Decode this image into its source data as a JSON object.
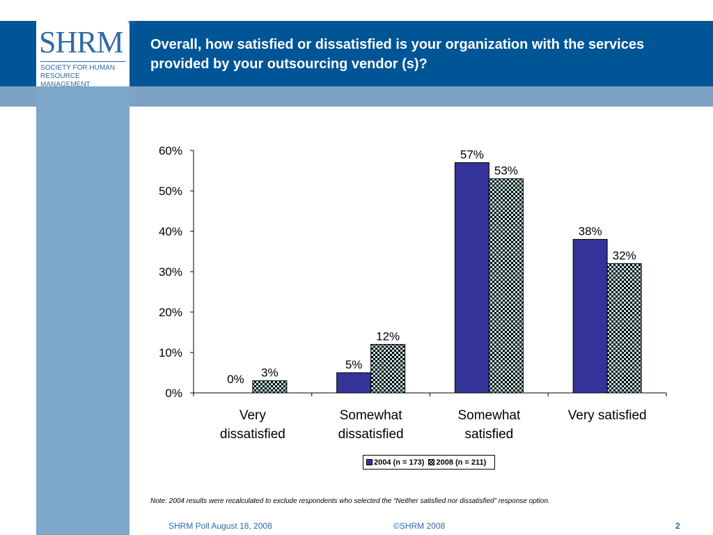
{
  "header": {
    "title": "Overall, how satisfied or dissatisfied is your organization with the services provided by your outsourcing vendor (s)?"
  },
  "logo": {
    "wordmark": "SHRM",
    "tm": "TM",
    "subtitle": "SOCIETY FOR HUMAN RESOURCE MANAGEMENT"
  },
  "chart_data": {
    "type": "bar",
    "categories": [
      "Very dissatisfied",
      "Somewhat dissatisfied",
      "Somewhat satisfied",
      "Very satisfied"
    ],
    "series": [
      {
        "name": "2004 (n = 173)",
        "values": [
          0,
          5,
          57,
          38
        ],
        "color": "#333399",
        "pattern": "solid"
      },
      {
        "name": "2008 (n = 211)",
        "values": [
          3,
          12,
          53,
          32
        ],
        "color": "#bfe3e1",
        "pattern": "checker"
      }
    ],
    "yticks": [
      "0%",
      "10%",
      "20%",
      "30%",
      "40%",
      "50%",
      "60%"
    ],
    "ylim": [
      0,
      60
    ],
    "data_labels": [
      [
        "0%",
        "5%",
        "57%",
        "38%"
      ],
      [
        "3%",
        "12%",
        "53%",
        "32%"
      ]
    ],
    "legend_position": "bottom",
    "grid": false
  },
  "note": "Note:  2004 results were recalculated to exclude respondents who selected the “Neither satisfied nor dissatisfied” response option.",
  "footer": {
    "left": "SHRM Poll August 18, 2008",
    "center": "©SHRM 2008",
    "page": "2"
  }
}
